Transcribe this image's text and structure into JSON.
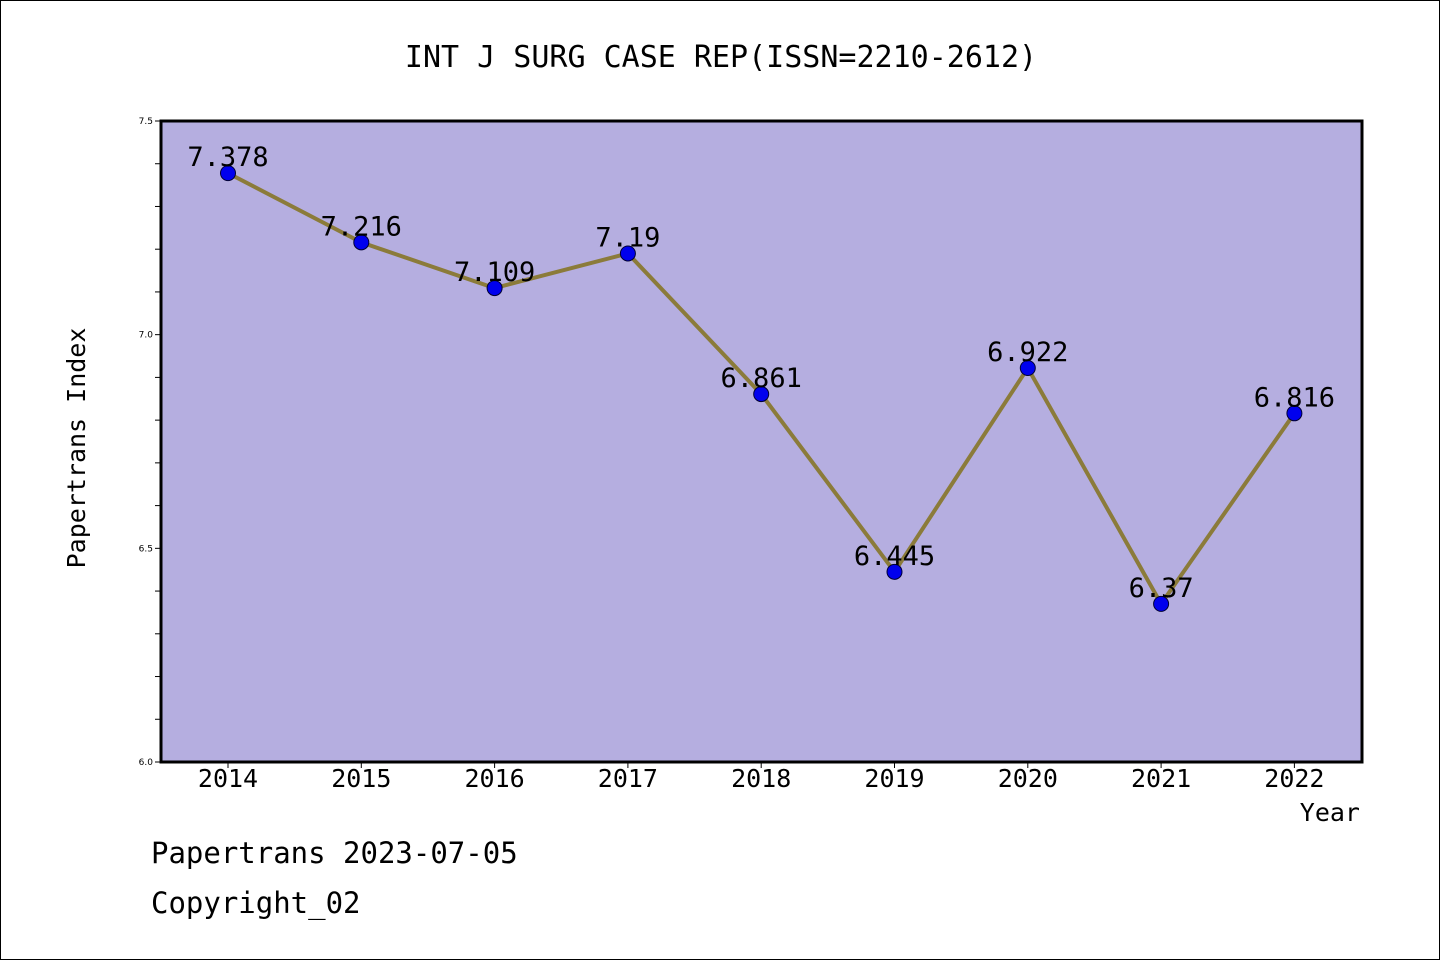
{
  "chart_data": {
    "type": "line",
    "title": "INT J SURG CASE REP(ISSN=2210-2612)",
    "xlabel": "Year",
    "ylabel": "Papertrans Index",
    "categories": [
      "2014",
      "2015",
      "2016",
      "2017",
      "2018",
      "2019",
      "2020",
      "2021",
      "2022"
    ],
    "values": [
      7.378,
      7.216,
      7.109,
      7.19,
      6.861,
      6.445,
      6.922,
      6.37,
      6.816
    ],
    "data_labels": [
      "7.378",
      "7.216",
      "7.109",
      "7.19",
      "6.861",
      "6.445",
      "6.922",
      "6.37",
      "6.816"
    ],
    "ylim": [
      6.0,
      7.5
    ],
    "yticks": [
      "6.0",
      "6.5",
      "7.0",
      "7.5"
    ],
    "grid": false,
    "colors": {
      "plot_background": "#b5aee0",
      "line": "#8b7b3a",
      "marker": "#0000ee"
    }
  },
  "footer": {
    "line1": "Papertrans 2023-07-05",
    "line2": "Copyright_02"
  }
}
